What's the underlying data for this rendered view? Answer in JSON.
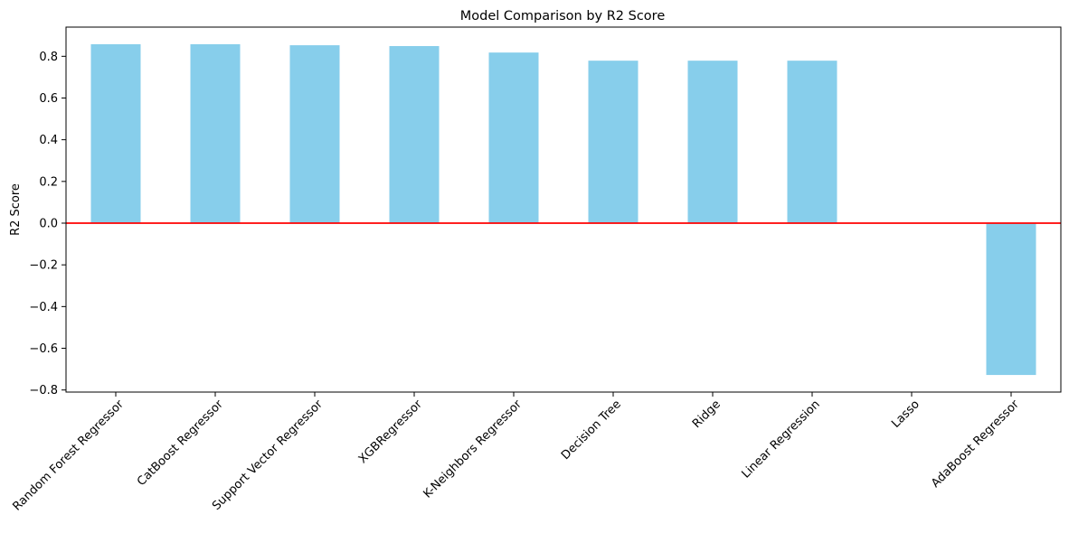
{
  "chart_data": {
    "type": "bar",
    "title": "Model Comparison by R2 Score",
    "xlabel": "",
    "ylabel": "R2 Score",
    "categories": [
      "Random Forest Regressor",
      "CatBoost Regressor",
      "Support Vector Regressor",
      "XGBRegressor",
      "K-Neighbors Regressor",
      "Decision Tree",
      "Ridge",
      "Linear Regression",
      "Lasso",
      "AdaBoost Regressor"
    ],
    "values": [
      0.858,
      0.858,
      0.853,
      0.849,
      0.818,
      0.779,
      0.779,
      0.779,
      0.0,
      -0.728
    ],
    "ylim": [
      -0.81,
      0.94
    ],
    "yticks": [
      -0.8,
      -0.6,
      -0.4,
      -0.2,
      0.0,
      0.2,
      0.4,
      0.6,
      0.8
    ],
    "ytick_labels": [
      "−0.8",
      "−0.6",
      "−0.4",
      "−0.2",
      "0.0",
      "0.2",
      "0.4",
      "0.6",
      "0.8"
    ],
    "bar_color": "#87ceeb",
    "reference_line": {
      "y": 0,
      "color": "#ff0000"
    },
    "grid": false,
    "x_tick_rotation_deg": 45
  }
}
